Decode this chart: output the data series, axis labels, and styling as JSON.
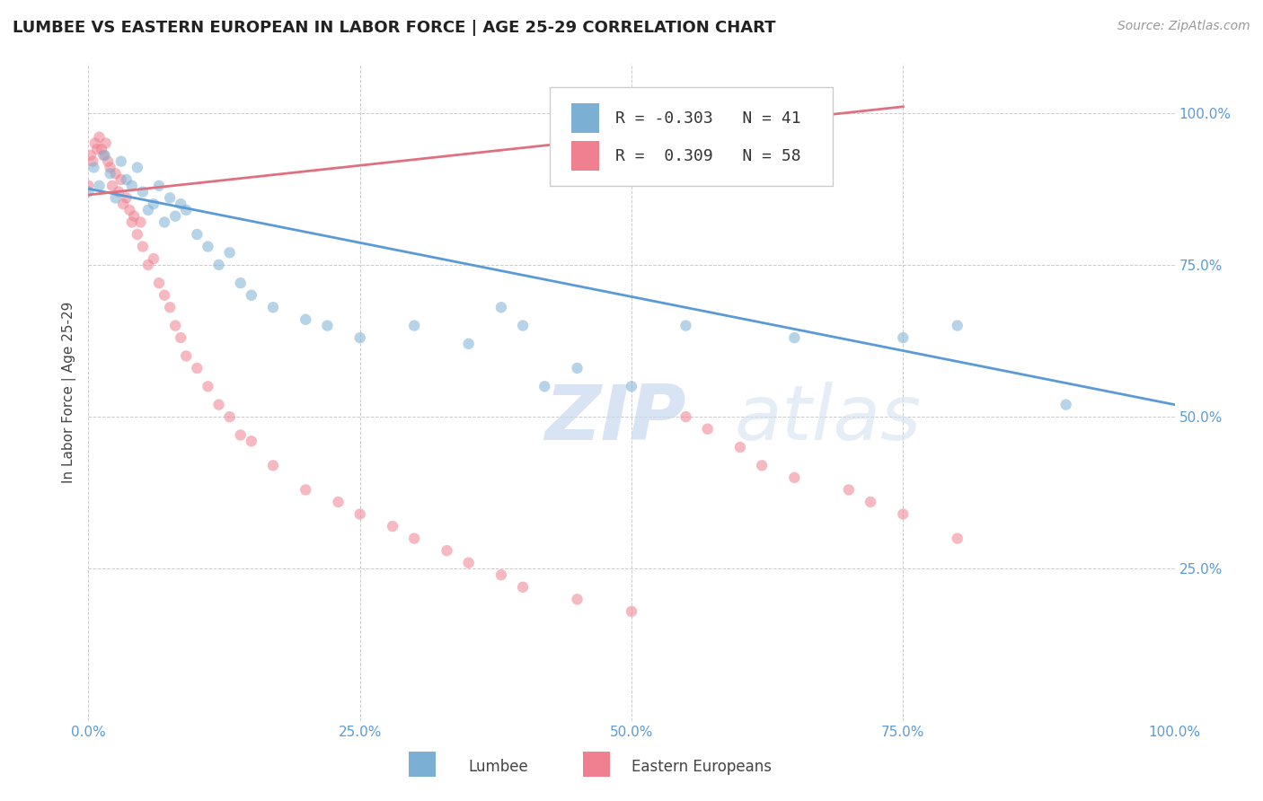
{
  "title": "LUMBEE VS EASTERN EUROPEAN IN LABOR FORCE | AGE 25-29 CORRELATION CHART",
  "source": "Source: ZipAtlas.com",
  "ylabel": "In Labor Force | Age 25-29",
  "legend_labels": [
    "Lumbee",
    "Eastern Europeans"
  ],
  "lumbee_color": "#7bafd4",
  "eastern_color": "#f08090",
  "lumbee_R": -0.303,
  "lumbee_N": 41,
  "eastern_R": 0.309,
  "eastern_N": 58,
  "lumbee_scatter_x": [
    0.0,
    0.005,
    0.01,
    0.015,
    0.02,
    0.025,
    0.03,
    0.035,
    0.04,
    0.045,
    0.05,
    0.055,
    0.06,
    0.065,
    0.07,
    0.075,
    0.08,
    0.085,
    0.09,
    0.1,
    0.11,
    0.12,
    0.13,
    0.14,
    0.15,
    0.17,
    0.2,
    0.22,
    0.25,
    0.3,
    0.35,
    0.38,
    0.4,
    0.42,
    0.45,
    0.5,
    0.55,
    0.65,
    0.75,
    0.8,
    0.9
  ],
  "lumbee_scatter_y": [
    0.87,
    0.91,
    0.88,
    0.93,
    0.9,
    0.86,
    0.92,
    0.89,
    0.88,
    0.91,
    0.87,
    0.84,
    0.85,
    0.88,
    0.82,
    0.86,
    0.83,
    0.85,
    0.84,
    0.8,
    0.78,
    0.75,
    0.77,
    0.72,
    0.7,
    0.68,
    0.66,
    0.65,
    0.63,
    0.65,
    0.62,
    0.68,
    0.65,
    0.55,
    0.58,
    0.55,
    0.65,
    0.63,
    0.63,
    0.65,
    0.52
  ],
  "eastern_scatter_x": [
    0.0,
    0.002,
    0.004,
    0.006,
    0.008,
    0.01,
    0.012,
    0.014,
    0.016,
    0.018,
    0.02,
    0.022,
    0.025,
    0.028,
    0.03,
    0.032,
    0.035,
    0.038,
    0.04,
    0.042,
    0.045,
    0.048,
    0.05,
    0.055,
    0.06,
    0.065,
    0.07,
    0.075,
    0.08,
    0.085,
    0.09,
    0.1,
    0.11,
    0.12,
    0.13,
    0.14,
    0.15,
    0.17,
    0.2,
    0.23,
    0.25,
    0.28,
    0.3,
    0.33,
    0.35,
    0.38,
    0.4,
    0.45,
    0.5,
    0.55,
    0.57,
    0.6,
    0.62,
    0.65,
    0.7,
    0.72,
    0.75,
    0.8
  ],
  "eastern_scatter_y": [
    0.88,
    0.93,
    0.92,
    0.95,
    0.94,
    0.96,
    0.94,
    0.93,
    0.95,
    0.92,
    0.91,
    0.88,
    0.9,
    0.87,
    0.89,
    0.85,
    0.86,
    0.84,
    0.82,
    0.83,
    0.8,
    0.82,
    0.78,
    0.75,
    0.76,
    0.72,
    0.7,
    0.68,
    0.65,
    0.63,
    0.6,
    0.58,
    0.55,
    0.52,
    0.5,
    0.47,
    0.46,
    0.42,
    0.38,
    0.36,
    0.34,
    0.32,
    0.3,
    0.28,
    0.26,
    0.24,
    0.22,
    0.2,
    0.18,
    0.5,
    0.48,
    0.45,
    0.42,
    0.4,
    0.38,
    0.36,
    0.34,
    0.3
  ],
  "lumbee_line_x0": 0.0,
  "lumbee_line_x1": 1.0,
  "lumbee_line_y0": 0.875,
  "lumbee_line_y1": 0.52,
  "eastern_line_x0": 0.0,
  "eastern_line_x1": 0.75,
  "eastern_line_y0": 0.865,
  "eastern_line_y1": 1.01,
  "xlim": [
    0.0,
    1.0
  ],
  "ylim": [
    0.0,
    1.08
  ],
  "xticks": [
    0.0,
    0.25,
    0.5,
    0.75,
    1.0
  ],
  "yticks": [
    0.25,
    0.5,
    0.75,
    1.0
  ],
  "xticklabels": [
    "0.0%",
    "25.0%",
    "50.0%",
    "75.0%",
    "100.0%"
  ],
  "yticklabels_right": [
    "25.0%",
    "50.0%",
    "75.0%",
    "100.0%"
  ],
  "watermark_zip": "ZIP",
  "watermark_atlas": "atlas",
  "background_color": "#ffffff",
  "grid_color": "#cccccc",
  "title_fontsize": 13,
  "axis_label_fontsize": 11,
  "tick_fontsize": 11,
  "source_fontsize": 10,
  "scatter_alpha": 0.55,
  "scatter_size": 80,
  "line_width": 2.0,
  "lumbee_line_color": "#5b9bd5",
  "eastern_line_color": "#e07080",
  "tick_color": "#5b9bd5"
}
